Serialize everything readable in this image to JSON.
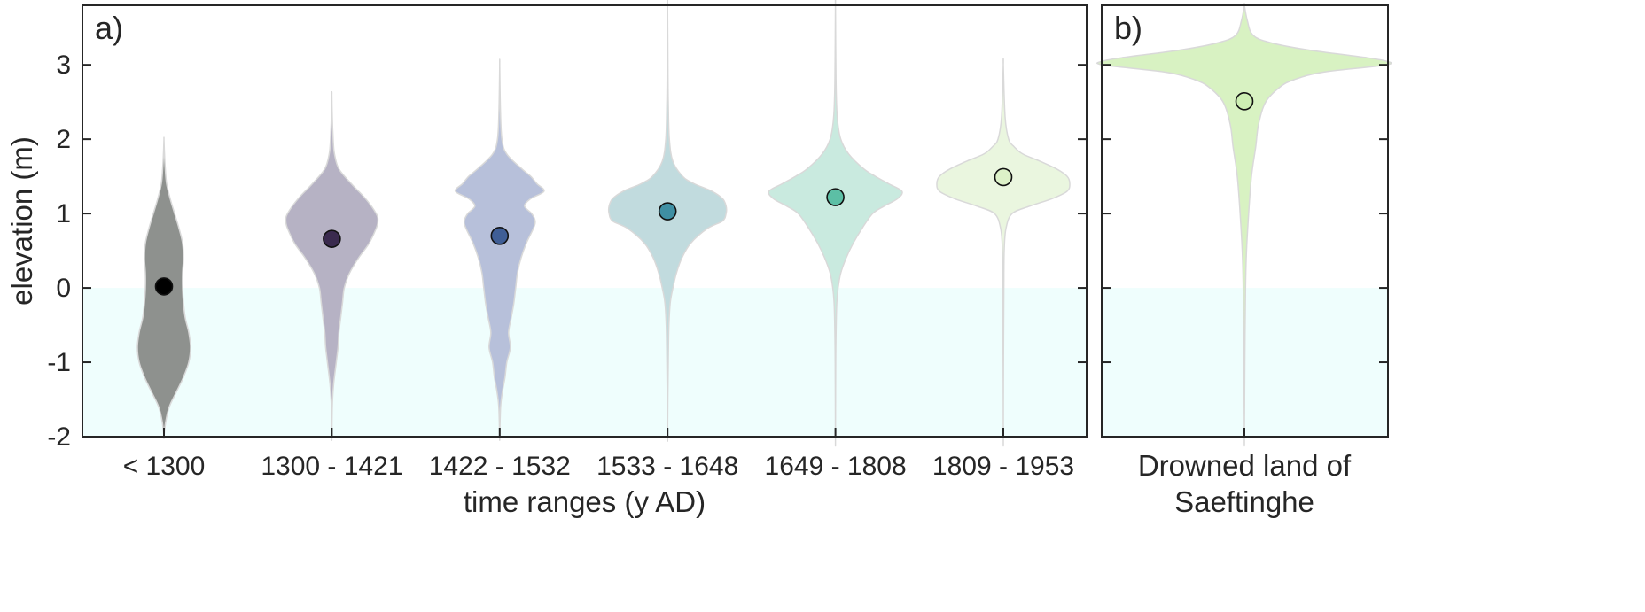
{
  "chart_data": [
    {
      "panel_label": "a)",
      "type": "violin",
      "categories": [
        "< 1300",
        "1300 - 1421",
        "1422 - 1532",
        "1533 - 1648",
        "1649 - 1808",
        "1809 - 1953"
      ],
      "xlabel": "time ranges (y AD)",
      "ylabel": "elevation (m)",
      "ylim": [
        -2,
        3.8
      ],
      "yticks": [
        -2,
        -1,
        0,
        1,
        2,
        3
      ],
      "ytick_labels": [
        "-2",
        "-1",
        "0",
        "1",
        "2",
        "3"
      ],
      "grid": false,
      "shaded_region": {
        "y_from": -2,
        "y_to": 0,
        "color": "#effefd"
      },
      "medians": [
        0.02,
        0.66,
        0.7,
        1.03,
        1.22,
        1.49
      ],
      "colors": [
        "#8e918e",
        "#b6b2c4",
        "#b7c0da",
        "#c1dbde",
        "#c9eadf",
        "#eaf6df"
      ],
      "marker_colors": [
        "#000000",
        "#3a2a4e",
        "#3f5e96",
        "#3f8fa3",
        "#5cbfa5",
        "#ddf2c8"
      ],
      "violin_profiles": [
        [
          [
            -2.0,
            0.0
          ],
          [
            -1.8,
            0.02
          ],
          [
            -1.6,
            0.06
          ],
          [
            -1.4,
            0.14
          ],
          [
            -1.2,
            0.22
          ],
          [
            -1.0,
            0.28
          ],
          [
            -0.8,
            0.3
          ],
          [
            -0.6,
            0.28
          ],
          [
            -0.4,
            0.24
          ],
          [
            -0.2,
            0.22
          ],
          [
            0.0,
            0.21
          ],
          [
            0.2,
            0.21
          ],
          [
            0.4,
            0.22
          ],
          [
            0.6,
            0.21
          ],
          [
            0.8,
            0.17
          ],
          [
            1.0,
            0.12
          ],
          [
            1.2,
            0.07
          ],
          [
            1.4,
            0.03
          ],
          [
            1.6,
            0.015
          ],
          [
            1.8,
            0.006
          ],
          [
            2.0,
            0.0
          ]
        ],
        [
          [
            -2.0,
            0.0
          ],
          [
            -1.6,
            0.005
          ],
          [
            -1.3,
            0.02
          ],
          [
            -1.0,
            0.05
          ],
          [
            -0.8,
            0.07
          ],
          [
            -0.6,
            0.08
          ],
          [
            -0.4,
            0.1
          ],
          [
            -0.2,
            0.12
          ],
          [
            0.0,
            0.14
          ],
          [
            0.2,
            0.2
          ],
          [
            0.4,
            0.3
          ],
          [
            0.6,
            0.42
          ],
          [
            0.8,
            0.5
          ],
          [
            0.9,
            0.52
          ],
          [
            1.0,
            0.5
          ],
          [
            1.2,
            0.38
          ],
          [
            1.4,
            0.22
          ],
          [
            1.6,
            0.08
          ],
          [
            1.8,
            0.03
          ],
          [
            2.0,
            0.015
          ],
          [
            2.3,
            0.005
          ],
          [
            2.6,
            0.0
          ]
        ],
        [
          [
            -2.0,
            0.0
          ],
          [
            -1.6,
            0.01
          ],
          [
            -1.4,
            0.03
          ],
          [
            -1.2,
            0.06
          ],
          [
            -1.0,
            0.08
          ],
          [
            -0.8,
            0.12
          ],
          [
            -0.6,
            0.1
          ],
          [
            -0.4,
            0.13
          ],
          [
            -0.2,
            0.16
          ],
          [
            0.0,
            0.18
          ],
          [
            0.2,
            0.2
          ],
          [
            0.4,
            0.24
          ],
          [
            0.6,
            0.3
          ],
          [
            0.8,
            0.38
          ],
          [
            0.9,
            0.4
          ],
          [
            1.0,
            0.36
          ],
          [
            1.1,
            0.28
          ],
          [
            1.2,
            0.35
          ],
          [
            1.3,
            0.5
          ],
          [
            1.4,
            0.42
          ],
          [
            1.5,
            0.35
          ],
          [
            1.6,
            0.25
          ],
          [
            1.8,
            0.08
          ],
          [
            2.0,
            0.025
          ],
          [
            2.4,
            0.008
          ],
          [
            3.0,
            0.0
          ]
        ],
        [
          [
            -2.0,
            0.0
          ],
          [
            -1.5,
            0.003
          ],
          [
            -1.0,
            0.008
          ],
          [
            -0.5,
            0.015
          ],
          [
            -0.2,
            0.03
          ],
          [
            0.0,
            0.06
          ],
          [
            0.2,
            0.1
          ],
          [
            0.4,
            0.16
          ],
          [
            0.6,
            0.26
          ],
          [
            0.8,
            0.45
          ],
          [
            0.9,
            0.62
          ],
          [
            1.0,
            0.66
          ],
          [
            1.1,
            0.66
          ],
          [
            1.2,
            0.62
          ],
          [
            1.3,
            0.5
          ],
          [
            1.4,
            0.3
          ],
          [
            1.5,
            0.17
          ],
          [
            1.7,
            0.06
          ],
          [
            2.0,
            0.02
          ],
          [
            2.5,
            0.008
          ],
          [
            3.0,
            0.004
          ],
          [
            3.8,
            0.0
          ]
        ],
        [
          [
            -2.0,
            0.0
          ],
          [
            -1.0,
            0.003
          ],
          [
            -0.5,
            0.008
          ],
          [
            -0.2,
            0.015
          ],
          [
            0.0,
            0.03
          ],
          [
            0.2,
            0.06
          ],
          [
            0.4,
            0.12
          ],
          [
            0.6,
            0.2
          ],
          [
            0.8,
            0.3
          ],
          [
            1.0,
            0.42
          ],
          [
            1.1,
            0.55
          ],
          [
            1.2,
            0.7
          ],
          [
            1.3,
            0.75
          ],
          [
            1.4,
            0.6
          ],
          [
            1.5,
            0.45
          ],
          [
            1.6,
            0.32
          ],
          [
            1.8,
            0.15
          ],
          [
            2.0,
            0.06
          ],
          [
            2.3,
            0.02
          ],
          [
            2.8,
            0.006
          ],
          [
            3.8,
            0.0
          ]
        ],
        [
          [
            -2.0,
            0.0
          ],
          [
            -1.0,
            0.002
          ],
          [
            0.0,
            0.006
          ],
          [
            0.5,
            0.01
          ],
          [
            0.8,
            0.03
          ],
          [
            1.0,
            0.1
          ],
          [
            1.1,
            0.3
          ],
          [
            1.2,
            0.55
          ],
          [
            1.3,
            0.72
          ],
          [
            1.4,
            0.75
          ],
          [
            1.5,
            0.72
          ],
          [
            1.6,
            0.6
          ],
          [
            1.7,
            0.42
          ],
          [
            1.8,
            0.22
          ],
          [
            1.9,
            0.12
          ],
          [
            2.0,
            0.06
          ],
          [
            2.3,
            0.02
          ],
          [
            3.0,
            0.0
          ]
        ]
      ]
    },
    {
      "panel_label": "b)",
      "type": "violin",
      "categories": [
        "Drowned land of Saeftinghe"
      ],
      "category_lines": [
        "Drowned land of",
        "Saeftinghe"
      ],
      "ylim": [
        -2,
        3.8
      ],
      "yticks": [
        -2,
        -1,
        0,
        1,
        2,
        3
      ],
      "shaded_region": {
        "y_from": -2,
        "y_to": 0,
        "color": "#effefd"
      },
      "medians": [
        2.51
      ],
      "colors": [
        "#d8f2c2"
      ],
      "marker_colors": [
        "#cdefb3"
      ],
      "violin_profiles": [
        [
          [
            -2.0,
            0.0
          ],
          [
            -1.0,
            0.003
          ],
          [
            0.0,
            0.008
          ],
          [
            0.5,
            0.015
          ],
          [
            1.0,
            0.03
          ],
          [
            1.5,
            0.05
          ],
          [
            1.9,
            0.08
          ],
          [
            2.2,
            0.1
          ],
          [
            2.5,
            0.15
          ],
          [
            2.7,
            0.25
          ],
          [
            2.8,
            0.35
          ],
          [
            2.9,
            0.55
          ],
          [
            3.0,
            1.0
          ],
          [
            3.05,
            1.0
          ],
          [
            3.1,
            0.85
          ],
          [
            3.2,
            0.45
          ],
          [
            3.3,
            0.18
          ],
          [
            3.4,
            0.06
          ],
          [
            3.6,
            0.02
          ],
          [
            3.8,
            0.0
          ]
        ]
      ]
    }
  ]
}
